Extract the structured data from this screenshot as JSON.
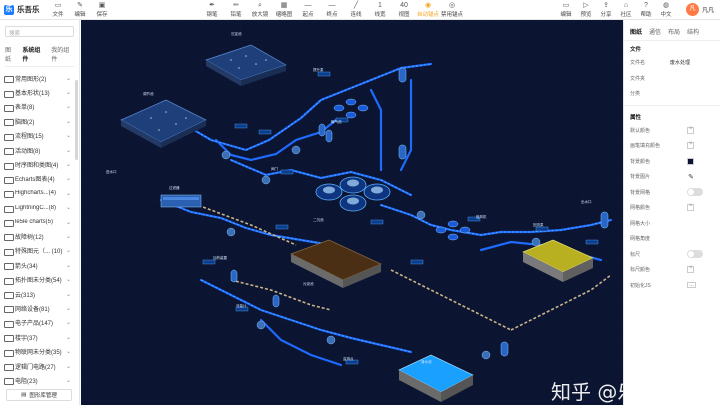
{
  "app": {
    "name": "乐吾乐",
    "logo_glyph": "乐"
  },
  "toolbar": {
    "left": [
      {
        "label": "文件",
        "icon": "file-icon",
        "glyph": "▭"
      },
      {
        "label": "编辑",
        "icon": "edit-icon",
        "glyph": "✎"
      },
      {
        "label": "保存",
        "icon": "save-icon",
        "glyph": "▣"
      }
    ],
    "middle": [
      {
        "label": "钢笔",
        "icon": "pen-icon",
        "glyph": "✒",
        "active": false
      },
      {
        "label": "铅笔",
        "icon": "pencil-icon",
        "glyph": "✏",
        "active": false
      },
      {
        "label": "放大镜",
        "icon": "magnifier-icon",
        "glyph": "⌕",
        "active": false
      },
      {
        "label": "缩略图",
        "icon": "thumbnail-icon",
        "glyph": "▦",
        "active": false
      },
      {
        "label": "起点",
        "icon": "start-point-icon",
        "glyph": "—",
        "active": false
      },
      {
        "label": "终点",
        "icon": "end-point-icon",
        "glyph": "—",
        "active": false
      },
      {
        "label": "连线",
        "icon": "line-icon",
        "glyph": "╱",
        "active": false
      },
      {
        "label": "线宽",
        "icon": "line-width-icon",
        "glyph": "1",
        "active": false
      },
      {
        "label": "视图",
        "icon": "view-icon",
        "glyph": "40",
        "active": false
      },
      {
        "label": "自动锚点",
        "icon": "auto-anchor-icon",
        "glyph": "◉",
        "active": true
      },
      {
        "label": "禁用锚点",
        "icon": "disable-anchor-icon",
        "glyph": "◎",
        "active": false
      }
    ],
    "right": [
      {
        "label": "编辑",
        "icon": "edit-mode-icon",
        "glyph": "▭"
      },
      {
        "label": "预览",
        "icon": "preview-icon",
        "glyph": "▷"
      },
      {
        "label": "分享",
        "icon": "share-icon",
        "glyph": "⇪"
      },
      {
        "label": "社区",
        "icon": "community-icon",
        "glyph": "⌂"
      },
      {
        "label": "帮助",
        "icon": "help-icon",
        "glyph": "?"
      },
      {
        "label": "中文",
        "icon": "language-icon",
        "glyph": "◍"
      }
    ],
    "user": {
      "avatar_text": "凡",
      "name": "凡凡"
    }
  },
  "left_panel": {
    "search_placeholder": "搜索",
    "tabs": [
      "图纸",
      "系统组件",
      "我的组件"
    ],
    "active_tab": 1,
    "categories": [
      "常用图形(2)",
      "基本形状(13)",
      "表单(8)",
      "脑图(2)",
      "流程图(15)",
      "活动图(8)",
      "时序图和类图(4)",
      "Echarts图表(4)",
      "Highcharts...(4)",
      "LightningC...(8)",
      "le5le charts(5)",
      "故障树(12)",
      "特殊图元（... (10)",
      "箭头(34)",
      "拓扑图未分类(54)",
      "云(313)",
      "网络设备(81)",
      "电子产品(147)",
      "楼宇(37)",
      "物联网未分类(35)",
      "逻辑门电路(27)",
      "电阻(23)"
    ],
    "library_button": "图形库管理"
  },
  "right_panel": {
    "tabs": [
      "图纸",
      "通信",
      "布局",
      "结构"
    ],
    "active_tab": 0,
    "file_section_title": "文件",
    "file_rows": [
      {
        "key": "文件名",
        "value": "废水处理"
      },
      {
        "key": "文件夹",
        "value": ""
      },
      {
        "key": "分类",
        "value": ""
      }
    ],
    "property_section_title": "属性",
    "property_rows": [
      {
        "key": "默认颜色",
        "control": "swatch"
      },
      {
        "key": "画笔填充颜色",
        "control": "swatch"
      },
      {
        "key": "背景颜色",
        "control": "swatch-dark"
      },
      {
        "key": "背景图片",
        "control": "pencil"
      },
      {
        "key": "背景网格",
        "control": "toggle"
      },
      {
        "key": "网格颜色",
        "control": "swatch"
      },
      {
        "key": "网格大小",
        "control": "none"
      },
      {
        "key": "网格角度",
        "control": "none"
      },
      {
        "key": "标尺",
        "control": "toggle"
      },
      {
        "key": "标尺颜色",
        "control": "swatch"
      },
      {
        "key": "初始化JS",
        "control": "dots"
      }
    ]
  },
  "canvas": {
    "background": "#0b1430",
    "watermark": "知乎 @乐吾乐Topology",
    "labels": [
      "沉淀池",
      "调节池",
      "提升泵",
      "曝气池",
      "二沉池",
      "污泥池",
      "清水池",
      "加药装置",
      "流量计",
      "阀门",
      "鼓风机",
      "过滤器",
      "进水口",
      "出水口",
      "监测点",
      "回流泵"
    ]
  },
  "colors": {
    "accent": "#1a7cff",
    "active": "#f5a623",
    "pipe": "#1e6bff",
    "pipe_glow": "#5ab0ff",
    "yellow_tank": "#c8c020",
    "sludge": "#5a3a1a",
    "blue_tank": "#1aa0ff"
  }
}
